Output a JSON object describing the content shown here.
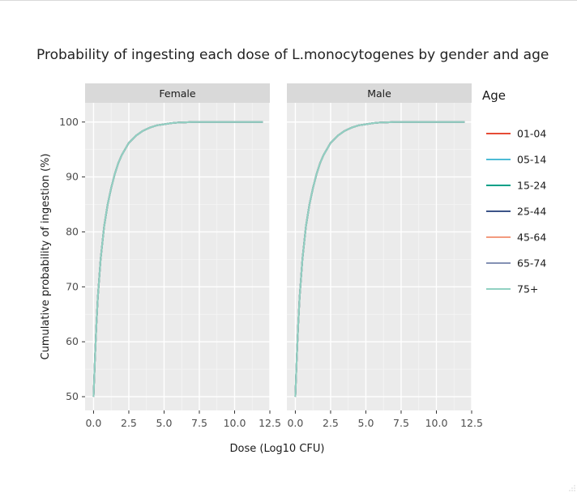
{
  "chart_data": {
    "type": "line",
    "title": "Probability of ingesting each dose of L.monocytogenes by gender and age",
    "xlabel": "Dose (Log10 CFU)",
    "ylabel": "Cumulative probability of ingestion (%)",
    "xlim": [
      -0.6,
      12.5
    ],
    "ylim": [
      47.5,
      103.5
    ],
    "xticks": [
      0,
      2.5,
      5,
      7.5,
      10,
      12.5
    ],
    "xtick_labels": [
      "0.0",
      "2.5",
      "5.0",
      "7.5",
      "10.0",
      "12.5"
    ],
    "yticks": [
      50,
      60,
      70,
      80,
      90,
      100
    ],
    "ytick_labels": [
      "50",
      "60",
      "70",
      "80",
      "90",
      "100"
    ],
    "grid": true,
    "legend_title": "Age",
    "legend_position": "right",
    "panels": [
      "Female",
      "Male"
    ],
    "x": [
      0,
      0.1,
      0.2,
      0.3,
      0.5,
      0.75,
      1,
      1.25,
      1.5,
      1.75,
      2,
      2.5,
      3,
      3.5,
      4,
      4.5,
      5,
      5.5,
      6,
      6.5,
      7,
      7.5,
      8,
      9,
      10,
      11,
      12
    ],
    "series": [
      {
        "name": "01-04",
        "color": "#e64b35",
        "values": [
          50,
          57,
          63,
          68,
          75,
          81,
          85,
          88,
          90.5,
          92.5,
          94,
          96.2,
          97.5,
          98.4,
          99,
          99.4,
          99.6,
          99.8,
          99.9,
          99.95,
          100,
          100,
          100,
          100,
          100,
          100,
          100
        ]
      },
      {
        "name": "05-14",
        "color": "#4dbbd5",
        "values": [
          50,
          57,
          63,
          68,
          75,
          81,
          85,
          88,
          90.5,
          92.5,
          94,
          96.2,
          97.5,
          98.4,
          99,
          99.4,
          99.6,
          99.8,
          99.9,
          99.95,
          100,
          100,
          100,
          100,
          100,
          100,
          100
        ]
      },
      {
        "name": "15-24",
        "color": "#00a087",
        "values": [
          50,
          57,
          63,
          68,
          75,
          81,
          85,
          88,
          90.5,
          92.5,
          94,
          96.2,
          97.5,
          98.4,
          99,
          99.4,
          99.6,
          99.8,
          99.9,
          99.95,
          100,
          100,
          100,
          100,
          100,
          100,
          100
        ]
      },
      {
        "name": "25-44",
        "color": "#3c5488",
        "values": [
          50,
          57,
          63,
          68,
          75,
          81,
          85,
          88,
          90.5,
          92.5,
          94,
          96.2,
          97.5,
          98.4,
          99,
          99.4,
          99.6,
          99.8,
          99.9,
          99.95,
          100,
          100,
          100,
          100,
          100,
          100,
          100
        ]
      },
      {
        "name": "45-64",
        "color": "#f39b7f",
        "values": [
          50,
          57,
          63,
          68,
          75,
          81,
          85,
          88,
          90.5,
          92.5,
          94,
          96.2,
          97.5,
          98.4,
          99,
          99.4,
          99.6,
          99.8,
          99.9,
          99.95,
          100,
          100,
          100,
          100,
          100,
          100,
          100
        ]
      },
      {
        "name": "65-74",
        "color": "#8491b4",
        "values": [
          50,
          57,
          63,
          68,
          75,
          81,
          85,
          88,
          90.5,
          92.5,
          94,
          96.2,
          97.5,
          98.4,
          99,
          99.4,
          99.6,
          99.8,
          99.9,
          99.95,
          100,
          100,
          100,
          100,
          100,
          100,
          100
        ]
      },
      {
        "name": "75+",
        "color": "#91d1c2",
        "values": [
          50,
          57,
          63,
          68,
          75,
          81,
          85,
          88,
          90.5,
          92.5,
          94,
          96.2,
          97.5,
          98.4,
          99,
          99.4,
          99.6,
          99.8,
          99.9,
          99.95,
          100,
          100,
          100,
          100,
          100,
          100,
          100
        ]
      }
    ]
  }
}
